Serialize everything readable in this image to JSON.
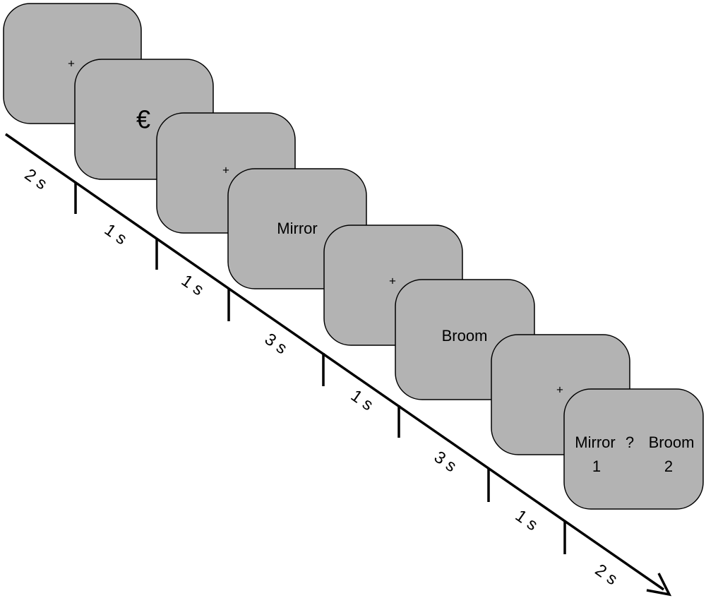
{
  "screens": [
    {
      "content": "+"
    },
    {
      "content": "€"
    },
    {
      "content": "+"
    },
    {
      "content": "Mirror"
    },
    {
      "content": "+"
    },
    {
      "content": "Broom"
    },
    {
      "content": "+"
    },
    {
      "left_word": "Mirror",
      "separator": "?",
      "right_word": "Broom",
      "left_key": "1",
      "right_key": "2"
    }
  ],
  "durations": [
    "2 s",
    "1 s",
    "1 s",
    "3 s",
    "1 s",
    "3 s",
    "1 s",
    "2 s"
  ]
}
